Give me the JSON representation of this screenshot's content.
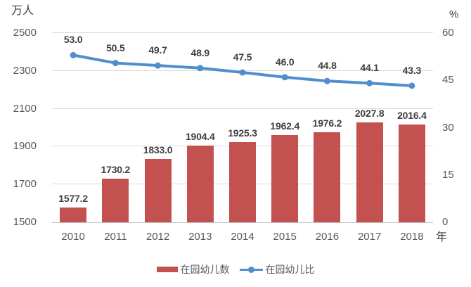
{
  "chart_data": {
    "type": "bar",
    "subtype": "combo-bar-line-dual-axis",
    "categories": [
      "2010",
      "2011",
      "2012",
      "2013",
      "2014",
      "2015",
      "2016",
      "2017",
      "2018"
    ],
    "series": [
      {
        "name": "在园幼儿数",
        "type": "bar",
        "axis": "left",
        "color": "#c3514f",
        "values": [
          1577.2,
          1730.2,
          1833.0,
          1904.4,
          1925.3,
          1962.4,
          1976.2,
          2027.8,
          2016.4
        ],
        "labels": [
          "1577.2",
          "1730.2",
          "1833.0",
          "1904.4",
          "1925.3",
          "1962.4",
          "1976.2",
          "2027.8",
          "2016.4"
        ]
      },
      {
        "name": "在园幼儿比",
        "type": "line",
        "axis": "right",
        "color": "#4f8fcc",
        "values": [
          53.0,
          50.5,
          49.7,
          48.9,
          47.5,
          46.0,
          44.8,
          44.1,
          43.3
        ],
        "labels": [
          "53.0",
          "50.5",
          "49.7",
          "48.9",
          "47.5",
          "46.0",
          "44.8",
          "44.1",
          "43.3"
        ]
      }
    ],
    "left_axis": {
      "title": "万人",
      "min": 1500,
      "max": 2500,
      "tick_values": [
        2500,
        2300,
        2100,
        1900,
        1700,
        1500
      ],
      "ticks": [
        "2500",
        "2300",
        "2100",
        "1900",
        "1700",
        "1500"
      ]
    },
    "right_axis": {
      "title": "%",
      "min": 0,
      "max": 60,
      "tick_values": [
        60,
        45,
        30,
        15,
        0
      ],
      "ticks": [
        "60",
        "45",
        "30",
        "15",
        "0"
      ]
    },
    "x_axis": {
      "title": "年"
    },
    "grid": "horizontal gridlines at left-axis ticks",
    "legend_position": "bottom-center",
    "title": ""
  },
  "colors": {
    "bar": "#c3514f",
    "line": "#4f8fcc",
    "gridline": "#d9d9d9",
    "axis_line": "#c3c3c3",
    "tick_text": "#595959",
    "data_label_text": "#404040",
    "background": "#ffffff"
  }
}
